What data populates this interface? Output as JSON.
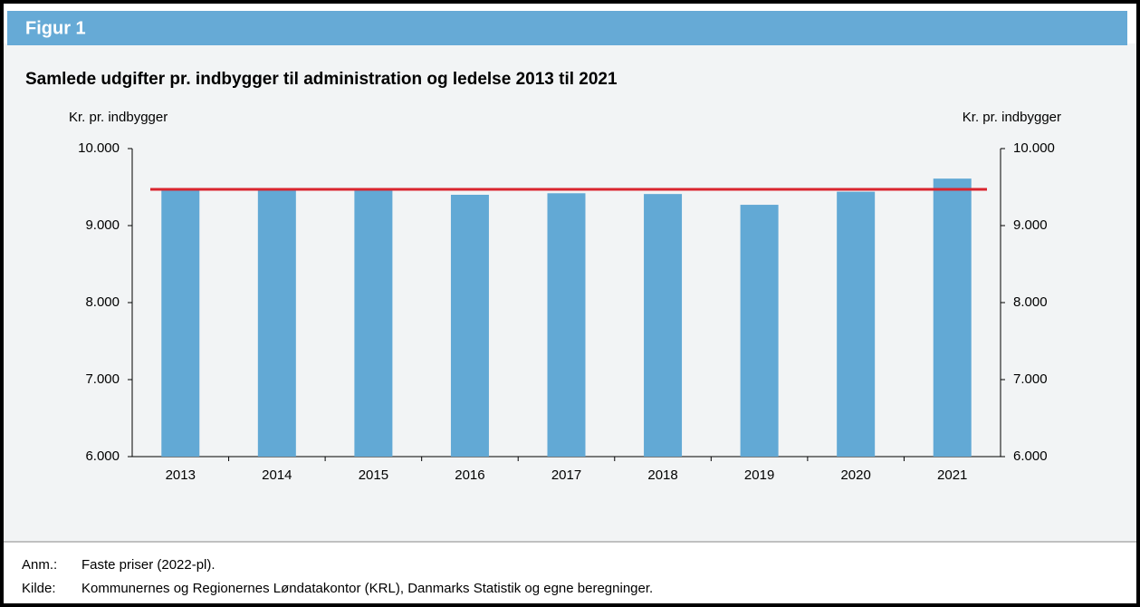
{
  "header": {
    "title": "Figur 1"
  },
  "chart_data": {
    "type": "bar",
    "title": "Samlede udgifter pr. indbygger til administration og ledelse 2013 til 2021",
    "y_label": "Kr. pr. indbygger",
    "y2_label": "Kr. pr. indbygger",
    "categories": [
      "2013",
      "2014",
      "2015",
      "2016",
      "2017",
      "2018",
      "2019",
      "2020",
      "2021"
    ],
    "values": [
      9470,
      9470,
      9470,
      9400,
      9420,
      9410,
      9270,
      9440,
      9610
    ],
    "color": "#62a9d5",
    "reference_line": {
      "value": 9470,
      "color": "#d9252e"
    },
    "ylim": [
      6000,
      10000
    ],
    "yticks": [
      {
        "value": 6000,
        "label": "6.000"
      },
      {
        "value": 7000,
        "label": "7.000"
      },
      {
        "value": 8000,
        "label": "8.000"
      },
      {
        "value": 9000,
        "label": "9.000"
      },
      {
        "value": 10000,
        "label": "10.000"
      }
    ],
    "y2lim": [
      6000,
      10000
    ],
    "y2ticks": [
      {
        "value": 6000,
        "label": "6.000"
      },
      {
        "value": 7000,
        "label": "7.000"
      },
      {
        "value": 8000,
        "label": "8.000"
      },
      {
        "value": 9000,
        "label": "9.000"
      },
      {
        "value": 10000,
        "label": "10.000"
      }
    ],
    "grid": false
  },
  "notes": [
    {
      "label": "Anm.:",
      "text": "Faste priser (2022-pl)."
    },
    {
      "label": "Kilde:",
      "text": "Kommunernes og Regionernes Løndatakontor (KRL), Danmarks Statistik og egne beregninger."
    }
  ]
}
